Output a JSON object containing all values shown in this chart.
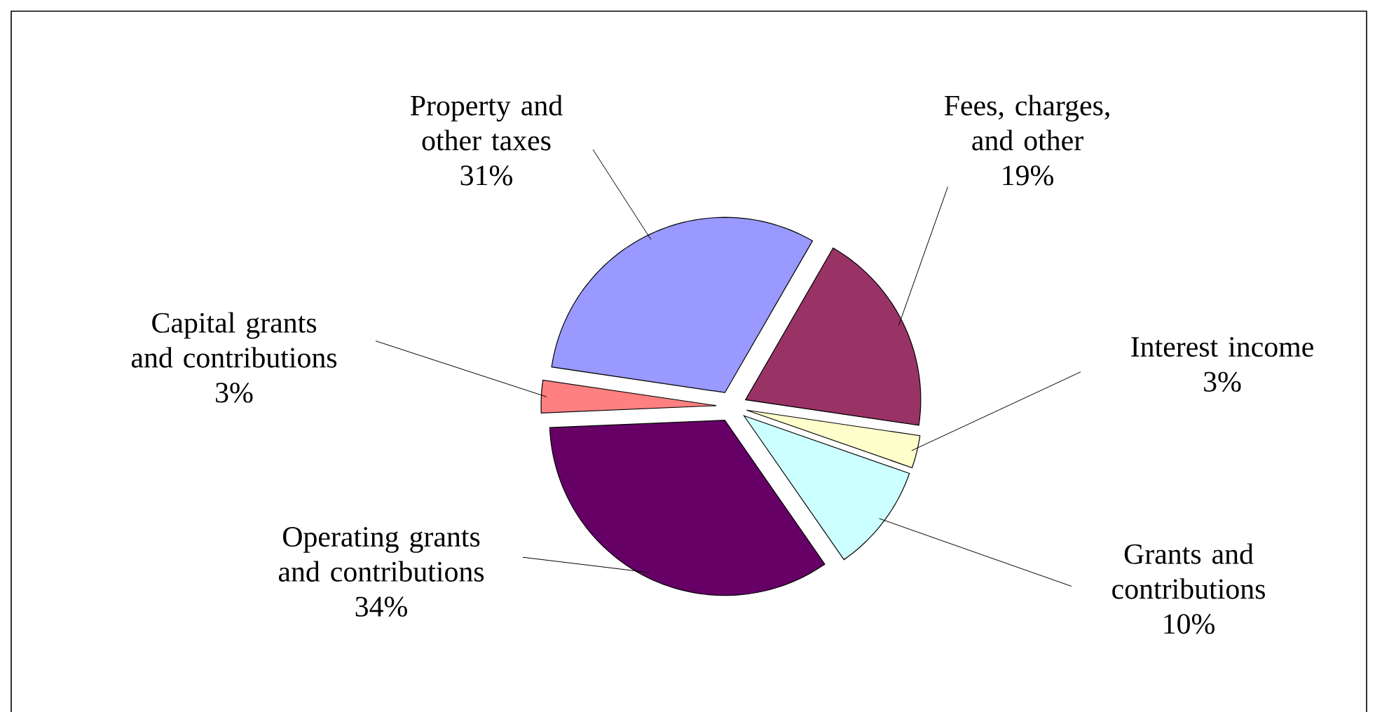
{
  "chart_data": {
    "type": "pie",
    "categories": [
      "Fees, charges, and other",
      "Interest income",
      "Grants and contributions",
      "Operating grants and contributions",
      "Capital grants and contributions",
      "Property and other taxes"
    ],
    "values": [
      19,
      3,
      10,
      34,
      3,
      31
    ],
    "value_labels": [
      "19%",
      "3%",
      "10%",
      "34%",
      "3%",
      "31%"
    ],
    "colors": [
      "#993366",
      "#ffffcc",
      "#ccffff",
      "#660066",
      "#ff8080",
      "#9999ff"
    ]
  }
}
